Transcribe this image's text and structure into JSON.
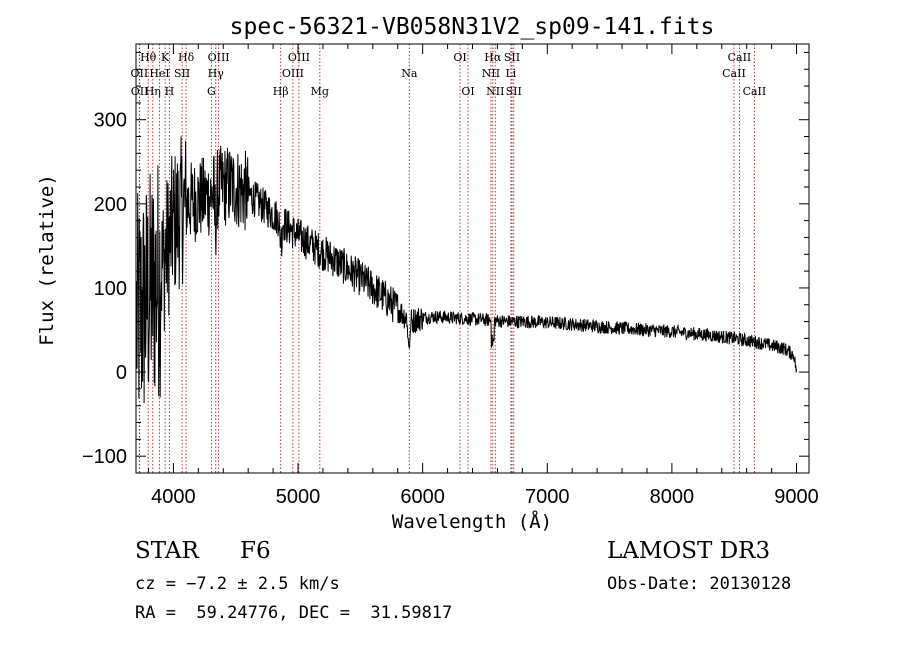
{
  "chart_data": {
    "type": "line",
    "title": "spec-56321-VB058N31V2_sp09-141.fits",
    "xlabel": "Wavelength (Å)",
    "ylabel": "Flux (relative)",
    "xlim": [
      3700,
      9100
    ],
    "ylim": [
      -120,
      390
    ],
    "x_ticks": [
      4000,
      5000,
      6000,
      7000,
      8000,
      9000
    ],
    "x_tick_labels": [
      "4000",
      "5000",
      "6000",
      "7000",
      "8000",
      "9000"
    ],
    "y_ticks": [
      -100,
      0,
      100,
      200,
      300
    ],
    "y_tick_labels": [
      "−100",
      "0",
      "100",
      "200",
      "300"
    ],
    "line_color": "#000000",
    "marker_color": "#b22222",
    "continuum": [
      [
        3700,
        60
      ],
      [
        3800,
        90
      ],
      [
        3900,
        120
      ],
      [
        4000,
        175
      ],
      [
        4100,
        200
      ],
      [
        4200,
        205
      ],
      [
        4300,
        210
      ],
      [
        4400,
        222
      ],
      [
        4500,
        220
      ],
      [
        4600,
        212
      ],
      [
        4700,
        200
      ],
      [
        4800,
        188
      ],
      [
        4900,
        175
      ],
      [
        5000,
        162
      ],
      [
        5100,
        152
      ],
      [
        5200,
        142
      ],
      [
        5300,
        133
      ],
      [
        5400,
        122
      ],
      [
        5500,
        112
      ],
      [
        5600,
        100
      ],
      [
        5700,
        88
      ],
      [
        5800,
        75
      ],
      [
        5900,
        60
      ],
      [
        6000,
        65
      ],
      [
        6100,
        66
      ],
      [
        6200,
        65
      ],
      [
        6300,
        64
      ],
      [
        6400,
        63
      ],
      [
        6500,
        62
      ],
      [
        6600,
        61
      ],
      [
        6700,
        60
      ],
      [
        6800,
        60
      ],
      [
        7000,
        59
      ],
      [
        7200,
        57
      ],
      [
        7500,
        53
      ],
      [
        7800,
        50
      ],
      [
        8000,
        48
      ],
      [
        8300,
        44
      ],
      [
        8500,
        40
      ],
      [
        8700,
        35
      ],
      [
        8900,
        28
      ],
      [
        8980,
        20
      ],
      [
        9000,
        0
      ]
    ],
    "absorption_dips": [
      {
        "wavelength": 5890,
        "depth": 25
      },
      {
        "wavelength": 6563,
        "depth": 25
      },
      {
        "wavelength": 4861,
        "depth": 20
      },
      {
        "wavelength": 4340,
        "depth": 30
      }
    ],
    "lines": [
      {
        "label": "Hθ",
        "wavelength": 3798,
        "row": 0
      },
      {
        "label": "OII",
        "wavelength": 3727,
        "row": 1
      },
      {
        "label": "OII",
        "wavelength": 3729,
        "row": 2
      },
      {
        "label": "Hη",
        "wavelength": 3835,
        "row": 2
      },
      {
        "label": "HeI",
        "wavelength": 3889,
        "row": 1
      },
      {
        "label": "K",
        "wavelength": 3934,
        "row": 0
      },
      {
        "label": "SII",
        "wavelength": 4070,
        "row": 1
      },
      {
        "label": "H",
        "wavelength": 3968,
        "row": 2
      },
      {
        "label": "Hδ",
        "wavelength": 4102,
        "row": 0
      },
      {
        "label": "OIII",
        "wavelength": 4363,
        "row": 0
      },
      {
        "label": "Hγ",
        "wavelength": 4340,
        "row": 1
      },
      {
        "label": "G",
        "wavelength": 4305,
        "row": 2
      },
      {
        "label": "Hβ",
        "wavelength": 4861,
        "row": 2
      },
      {
        "label": "OIII",
        "wavelength": 5007,
        "row": 0
      },
      {
        "label": "OIII",
        "wavelength": 4959,
        "row": 1
      },
      {
        "label": "Mg",
        "wavelength": 5175,
        "row": 2
      },
      {
        "label": "Na",
        "wavelength": 5893,
        "row": 1
      },
      {
        "label": "OI",
        "wavelength": 6300,
        "row": 0
      },
      {
        "label": "OI",
        "wavelength": 6364,
        "row": 2
      },
      {
        "label": "Hα",
        "wavelength": 6563,
        "row": 0
      },
      {
        "label": "NII",
        "wavelength": 6548,
        "row": 1
      },
      {
        "label": "NII",
        "wavelength": 6583,
        "row": 2
      },
      {
        "label": "SII",
        "wavelength": 6717,
        "row": 0
      },
      {
        "label": "Li",
        "wavelength": 6708,
        "row": 1
      },
      {
        "label": "SII",
        "wavelength": 6731,
        "row": 2
      },
      {
        "label": "CaII",
        "wavelength": 8542,
        "row": 0
      },
      {
        "label": "CaII",
        "wavelength": 8498,
        "row": 1
      },
      {
        "label": "CaII",
        "wavelength": 8662,
        "row": 2
      }
    ]
  },
  "info": {
    "object_class": "STAR",
    "subclass": "F6",
    "redshift": "cz = −7.2 ± 2.5 km/s",
    "coords": "RA =  59.24776, DEC =  31.59817",
    "survey": "LAMOST DR3",
    "obs_date": "Obs-Date: 20130128"
  }
}
